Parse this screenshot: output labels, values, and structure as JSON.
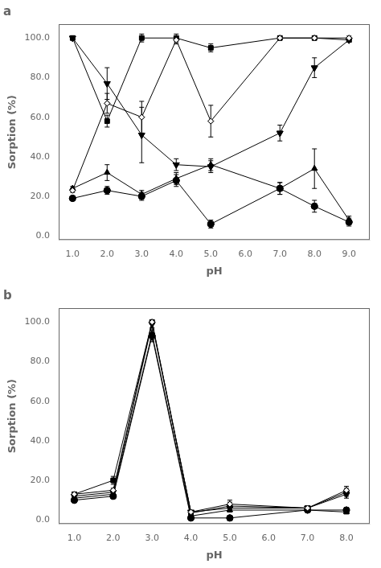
{
  "chart_data": [
    {
      "type": "line",
      "title": "a",
      "x_label": "pH",
      "y_label": "Sorption (%)",
      "x": [
        1.0,
        2.0,
        3.0,
        4.0,
        5.0,
        7.0,
        8.0,
        9.0
      ],
      "xlim": [
        0.6,
        9.6
      ],
      "xticks": [
        {
          "value": 1,
          "label": "1.0"
        },
        {
          "value": 2,
          "label": "2.0"
        },
        {
          "value": 3,
          "label": "3.0"
        },
        {
          "value": 4,
          "label": "4.0"
        },
        {
          "value": 5,
          "label": "5.0"
        },
        {
          "value": 6,
          "label": "6.0"
        },
        {
          "value": 7,
          "label": "7.0"
        },
        {
          "value": 8,
          "label": "8.0"
        },
        {
          "value": 9,
          "label": "9.0"
        }
      ],
      "ylim": [
        -2,
        107
      ],
      "yticks": [
        {
          "value": 0,
          "label": "0.0"
        },
        {
          "value": 20,
          "label": "20.0"
        },
        {
          "value": 40,
          "label": "40.0"
        },
        {
          "value": 60,
          "label": "60.0"
        },
        {
          "value": 80,
          "label": "80.0"
        },
        {
          "value": 100,
          "label": "100.0"
        }
      ],
      "grid": false,
      "series": [
        {
          "color": "#000000",
          "marker": "square",
          "values": [
            100,
            58,
            100,
            100,
            95,
            100,
            100,
            99
          ],
          "yerr": [
            1,
            3,
            2,
            2,
            2,
            1,
            1,
            1
          ]
        },
        {
          "color": "#000000",
          "marker": "triangle-down",
          "values": [
            100,
            77,
            51,
            36,
            35,
            52,
            85,
            99
          ],
          "yerr": [
            1,
            8,
            14,
            3,
            3,
            4,
            5,
            1
          ]
        },
        {
          "color": "#000000",
          "marker": "triangle-up",
          "values": [
            24,
            32,
            21,
            29,
            36,
            24,
            34,
            8
          ],
          "yerr": [
            1,
            4,
            2,
            3,
            3,
            3,
            10,
            2
          ]
        },
        {
          "color": "#000000",
          "marker": "circle",
          "values": [
            19,
            23,
            20,
            28,
            6,
            24,
            15,
            7
          ],
          "yerr": [
            1,
            2,
            2,
            3,
            2,
            3,
            3,
            2
          ]
        },
        {
          "color": "#000000",
          "marker": "diamond-open",
          "values": [
            23,
            67,
            60,
            99,
            58,
            100,
            100,
            100
          ],
          "yerr": [
            1,
            5,
            8,
            2,
            8,
            1,
            1,
            1
          ]
        }
      ]
    },
    {
      "type": "line",
      "title": "b",
      "x_label": "pH",
      "y_label": "Sorption (%)",
      "x": [
        1.0,
        2.0,
        3.0,
        4.0,
        5.0,
        7.0,
        8.0
      ],
      "xlim": [
        0.6,
        8.6
      ],
      "xticks": [
        {
          "value": 1,
          "label": "1.0"
        },
        {
          "value": 2,
          "label": "2.0"
        },
        {
          "value": 3,
          "label": "3.0"
        },
        {
          "value": 4,
          "label": "4.0"
        },
        {
          "value": 5,
          "label": "5.0"
        },
        {
          "value": 6,
          "label": "6.0"
        },
        {
          "value": 7,
          "label": "7.0"
        },
        {
          "value": 8,
          "label": "8.0"
        }
      ],
      "ylim": [
        -2,
        107
      ],
      "yticks": [
        {
          "value": 0,
          "label": "0.0"
        },
        {
          "value": 20,
          "label": "20.0"
        },
        {
          "value": 40,
          "label": "40.0"
        },
        {
          "value": 60,
          "label": "60.0"
        },
        {
          "value": 80,
          "label": "80.0"
        },
        {
          "value": 100,
          "label": "100.0"
        }
      ],
      "grid": false,
      "series": [
        {
          "color": "#000000",
          "marker": "square",
          "values": [
            13,
            20,
            100,
            3.5,
            7,
            6,
            14
          ],
          "yerr": [
            1,
            2,
            1,
            0.5,
            2,
            1,
            2
          ]
        },
        {
          "color": "#000000",
          "marker": "triangle-down",
          "values": [
            12,
            14,
            99,
            4,
            6,
            6,
            13
          ],
          "yerr": [
            1,
            1,
            2,
            0.5,
            1,
            1,
            2
          ]
        },
        {
          "color": "#000000",
          "marker": "triangle-up",
          "values": [
            11,
            13,
            94,
            2,
            5,
            5,
            4
          ],
          "yerr": [
            1,
            1,
            3,
            0.5,
            1,
            1,
            1
          ]
        },
        {
          "color": "#000000",
          "marker": "circle",
          "values": [
            10,
            12,
            93,
            1,
            1,
            5,
            5
          ],
          "yerr": [
            1,
            1,
            3,
            0.5,
            0.5,
            1,
            1
          ]
        },
        {
          "color": "#000000",
          "marker": "diamond-open",
          "values": [
            13,
            15,
            100,
            4,
            8,
            6,
            15
          ],
          "yerr": [
            1,
            1,
            1,
            0.5,
            2,
            1,
            2
          ]
        }
      ]
    }
  ]
}
